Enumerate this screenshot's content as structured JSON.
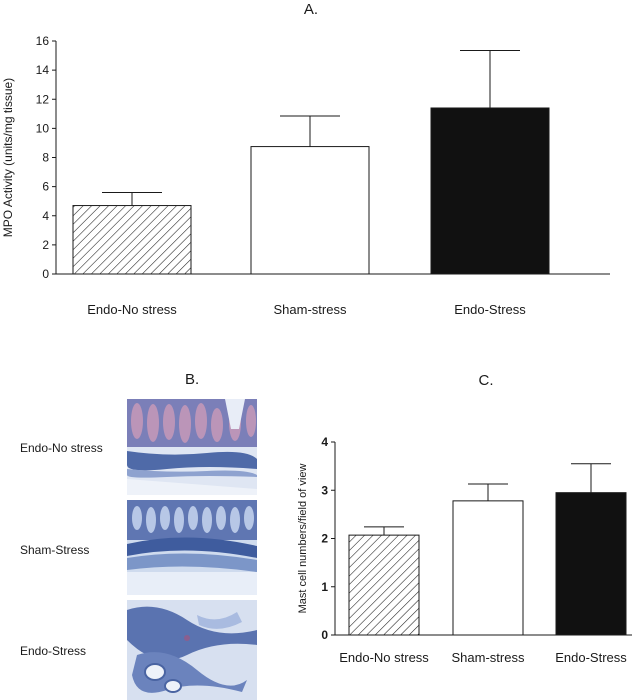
{
  "chart_data": [
    {
      "type": "bar",
      "panel": "A.",
      "title": "",
      "ylabel": "MPO Activity  (units/mg tissue)",
      "xlabel": "",
      "ylim": [
        0,
        16
      ],
      "yticks": [
        0,
        2,
        4,
        6,
        8,
        10,
        12,
        14,
        16
      ],
      "categories": [
        "Endo-No stress",
        "Sham-stress",
        "Endo-Stress"
      ],
      "values": [
        4.7,
        8.75,
        11.4
      ],
      "errors": [
        0.9,
        2.1,
        3.95
      ],
      "fills": [
        "hatched",
        "white",
        "black"
      ],
      "grid": false
    },
    {
      "type": "bar",
      "panel": "C.",
      "title": "",
      "ylabel": "Mast cell numbers/field of view",
      "xlabel": "",
      "ylim": [
        0,
        4
      ],
      "yticks": [
        0,
        1,
        2,
        3,
        4
      ],
      "categories": [
        "Endo-No stress",
        "Sham-stress",
        "Endo-Stress"
      ],
      "values": [
        2.07,
        2.78,
        2.95
      ],
      "errors": [
        0.17,
        0.35,
        0.6
      ],
      "fills": [
        "hatched",
        "white",
        "black"
      ],
      "grid": false
    }
  ],
  "panel_b": {
    "label": "B.",
    "rows": [
      "Endo-No stress",
      "Sham-Stress",
      "Endo-Stress"
    ]
  },
  "colors": {
    "ink": "#1a1a1a",
    "bar_black": "#111111",
    "tissue_blue": "#5e78b4",
    "tissue_pale": "#c8d4ea",
    "mucosa_pink": "#a06a9a"
  }
}
